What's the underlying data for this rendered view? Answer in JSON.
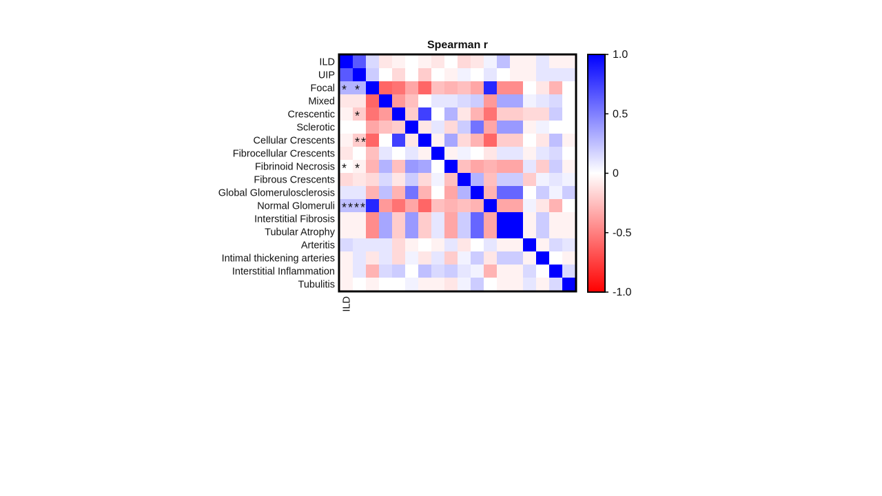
{
  "chart_data": {
    "type": "heatmap",
    "title": "Spearman r",
    "rows": [
      "ILD",
      "UIP",
      "Focal",
      "Mixed",
      "Crescentic",
      "Sclerotic",
      "Cellular Crescents",
      "Fibrocellular Crescents",
      "Fibrinoid Necrosis",
      "Fibrous Crescents",
      "Global Glomerulosclerosis",
      "Normal Glomeruli",
      "Interstitial Fibrosis",
      "Tubular Atrophy",
      "Arteritis",
      "Intimal thickening arteries",
      "Interstitial Inflammation",
      "Tubulitis"
    ],
    "columns": [
      "ILD",
      "",
      "",
      "",
      "",
      "",
      "",
      "",
      "",
      "",
      "",
      "",
      "",
      "",
      "",
      "",
      "",
      ""
    ],
    "values": [
      [
        1.0,
        0.65,
        0.15,
        -0.1,
        -0.05,
        0.0,
        -0.05,
        -0.1,
        0.0,
        -0.15,
        -0.1,
        0.05,
        0.25,
        -0.05,
        -0.05,
        0.1,
        -0.05,
        -0.05
      ],
      [
        0.65,
        1.0,
        0.2,
        0.0,
        -0.15,
        0.0,
        -0.2,
        0.0,
        -0.05,
        0.05,
        0.0,
        0.1,
        0.0,
        -0.05,
        -0.05,
        0.1,
        0.1,
        0.1
      ],
      [
        0.3,
        0.3,
        1.0,
        -0.6,
        -0.55,
        -0.35,
        -0.6,
        -0.25,
        -0.3,
        -0.25,
        -0.35,
        0.85,
        -0.45,
        -0.45,
        0.0,
        -0.1,
        -0.3,
        0.0
      ],
      [
        -0.1,
        -0.1,
        -0.6,
        1.0,
        -0.4,
        -0.25,
        0.0,
        0.1,
        0.1,
        0.15,
        0.2,
        -0.4,
        0.35,
        0.35,
        0.05,
        0.1,
        0.15,
        0.0
      ],
      [
        -0.05,
        -0.2,
        -0.55,
        -0.4,
        1.0,
        -0.2,
        0.75,
        0.0,
        0.3,
        -0.1,
        -0.3,
        -0.55,
        -0.2,
        -0.2,
        -0.15,
        -0.15,
        0.2,
        0.0
      ],
      [
        0.0,
        0.0,
        -0.35,
        -0.25,
        -0.2,
        1.0,
        -0.1,
        0.1,
        -0.15,
        0.2,
        0.55,
        -0.35,
        0.4,
        0.4,
        -0.05,
        0.05,
        0.0,
        0.0
      ],
      [
        -0.05,
        -0.2,
        -0.6,
        0.0,
        0.75,
        -0.1,
        1.0,
        -0.05,
        0.35,
        -0.15,
        -0.3,
        -0.6,
        -0.2,
        -0.2,
        0.0,
        -0.1,
        0.25,
        -0.05
      ],
      [
        -0.1,
        0.0,
        -0.25,
        0.1,
        0.0,
        0.1,
        -0.05,
        1.0,
        -0.05,
        0.05,
        0.0,
        -0.1,
        0.1,
        0.1,
        -0.05,
        0.1,
        0.15,
        0.0
      ],
      [
        0.0,
        -0.05,
        -0.3,
        0.3,
        -0.25,
        0.4,
        0.35,
        0.0,
        1.0,
        -0.25,
        -0.35,
        -0.3,
        -0.35,
        -0.35,
        0.1,
        -0.2,
        0.2,
        -0.05
      ],
      [
        -0.15,
        -0.1,
        -0.15,
        0.15,
        -0.1,
        0.2,
        -0.15,
        0.05,
        -0.25,
        1.0,
        0.3,
        -0.25,
        0.2,
        0.2,
        -0.2,
        0.05,
        0.1,
        0.05
      ],
      [
        0.1,
        0.1,
        -0.3,
        0.25,
        -0.3,
        0.55,
        -0.3,
        0.0,
        -0.35,
        0.3,
        1.0,
        -0.3,
        0.6,
        0.6,
        0.0,
        0.2,
        0.05,
        0.2
      ],
      [
        0.25,
        0.25,
        0.85,
        -0.4,
        -0.55,
        -0.35,
        -0.6,
        -0.25,
        -0.3,
        -0.25,
        -0.3,
        1.0,
        -0.35,
        -0.35,
        0.05,
        -0.1,
        -0.3,
        0.0
      ],
      [
        -0.05,
        -0.05,
        -0.45,
        0.35,
        -0.2,
        0.4,
        -0.2,
        0.1,
        -0.35,
        0.2,
        0.6,
        -0.35,
        1.0,
        1.0,
        -0.05,
        0.2,
        -0.05,
        -0.05
      ],
      [
        -0.05,
        -0.05,
        -0.45,
        0.35,
        -0.2,
        0.4,
        -0.2,
        0.1,
        -0.35,
        0.2,
        0.6,
        -0.35,
        1.0,
        1.0,
        -0.05,
        0.2,
        -0.05,
        -0.05
      ],
      [
        0.15,
        0.1,
        0.1,
        0.1,
        -0.15,
        -0.05,
        0.0,
        -0.05,
        0.1,
        -0.1,
        0.0,
        0.1,
        -0.05,
        -0.05,
        1.0,
        -0.05,
        0.15,
        0.1
      ],
      [
        -0.05,
        0.1,
        -0.1,
        0.1,
        -0.15,
        0.05,
        -0.1,
        0.1,
        -0.2,
        0.05,
        0.2,
        -0.1,
        0.2,
        0.2,
        -0.05,
        1.0,
        0.0,
        -0.05
      ],
      [
        -0.05,
        0.1,
        -0.3,
        0.15,
        0.2,
        0.0,
        0.25,
        0.15,
        0.2,
        0.1,
        0.05,
        -0.3,
        -0.05,
        -0.05,
        0.15,
        0.0,
        1.0,
        0.15
      ],
      [
        -0.05,
        0.0,
        -0.05,
        0.0,
        0.0,
        0.05,
        -0.05,
        -0.05,
        -0.1,
        0.05,
        0.2,
        0.0,
        -0.05,
        -0.05,
        0.1,
        -0.05,
        0.15,
        1.0
      ]
    ],
    "annotations": [
      {
        "row": "Focal",
        "col": 0,
        "text": "*"
      },
      {
        "row": "Focal",
        "col": 1,
        "text": "*"
      },
      {
        "row": "Crescentic",
        "col": 1,
        "text": "*"
      },
      {
        "row": "Cellular Crescents",
        "col": 1,
        "text": "**"
      },
      {
        "row": "Fibrinoid Necrosis",
        "col": 0,
        "text": "*"
      },
      {
        "row": "Fibrinoid Necrosis",
        "col": 1,
        "text": "*"
      },
      {
        "row": "Normal Glomeruli",
        "col": 0,
        "text": "****"
      }
    ],
    "colorscale": {
      "min": -1.0,
      "max": 1.0,
      "low_color": "#ff0000",
      "mid_color": "#ffffff",
      "high_color": "#0000ff"
    },
    "colorbar_ticks": [
      "1.0",
      "0.5",
      "0",
      "-0.5",
      "-1.0"
    ]
  }
}
